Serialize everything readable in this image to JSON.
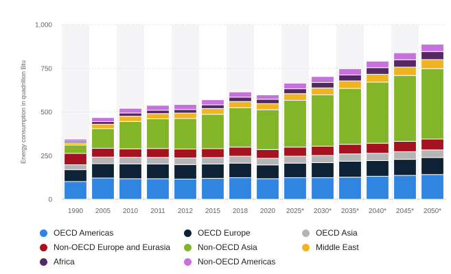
{
  "chart_data": {
    "type": "bar",
    "stacked": true,
    "ylabel": "Energy consumption in quadrillion Btu",
    "ylim": [
      0,
      1000
    ],
    "yticks": [
      "0",
      "250",
      "500",
      "750",
      "1,000"
    ],
    "categories": [
      "1990",
      "2005",
      "2010",
      "2011",
      "2012",
      "2015",
      "2018",
      "2020",
      "2025*",
      "2030*",
      "2035*",
      "2040*",
      "2045*",
      "2050*"
    ],
    "legend_placement": "bottom",
    "grid": true,
    "series": [
      {
        "name": "OECD Americas",
        "color": "#2f85e0",
        "values": [
          102,
          122,
          118,
          118,
          116,
          120,
          124,
          118,
          124,
          124,
          127,
          132,
          137,
          142
        ]
      },
      {
        "name": "OECD Europe",
        "color": "#0e2235",
        "values": [
          68,
          82,
          85,
          84,
          83,
          82,
          83,
          79,
          83,
          86,
          91,
          90,
          92,
          97
        ]
      },
      {
        "name": "OECD Asia",
        "color": "#b5b5b5",
        "values": [
          28,
          38,
          38,
          38,
          38,
          37,
          40,
          38,
          40,
          41,
          42,
          42,
          44,
          44
        ]
      },
      {
        "name": "Non-OECD Europe and Eurasia",
        "color": "#a51220",
        "values": [
          65,
          50,
          48,
          51,
          51,
          51,
          52,
          50,
          52,
          53,
          55,
          57,
          59,
          62
        ]
      },
      {
        "name": "Non-OECD Asia",
        "color": "#83b52a",
        "values": [
          48,
          113,
          157,
          170,
          175,
          197,
          226,
          228,
          268,
          294,
          320,
          350,
          377,
          403
        ]
      },
      {
        "name": "Middle East",
        "color": "#f0b420",
        "values": [
          13,
          25,
          30,
          30,
          31,
          33,
          35,
          35,
          38,
          40,
          43,
          45,
          48,
          52
        ]
      },
      {
        "name": "Africa",
        "color": "#542860",
        "values": [
          9,
          15,
          18,
          19,
          20,
          21,
          25,
          25,
          28,
          31,
          34,
          38,
          42,
          46
        ]
      },
      {
        "name": "Non-OECD Americas",
        "color": "#c671dd",
        "values": [
          12,
          23,
          27,
          28,
          29,
          29,
          30,
          25,
          32,
          34,
          36,
          37,
          40,
          42
        ]
      }
    ]
  }
}
